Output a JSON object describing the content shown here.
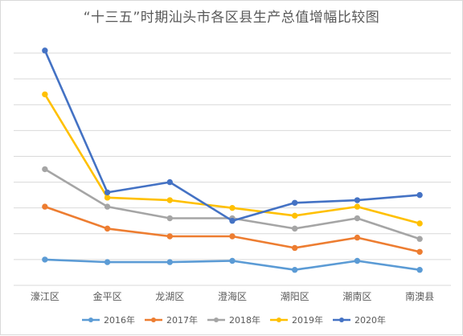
{
  "chart_data": {
    "type": "line",
    "title": "“十三五”时期汕头市各区县生产总值增幅比较图",
    "categories": [
      "濠江区",
      "金平区",
      "龙湖区",
      "澄海区",
      "潮阳区",
      "潮南区",
      "南澳县"
    ],
    "ylim": [
      0,
      9.5
    ],
    "grid": true,
    "legend_position": "bottom",
    "series": [
      {
        "name": "2016年",
        "color": "#5B9BD5",
        "values": [
          1.0,
          0.9,
          0.9,
          0.95,
          0.6,
          0.95,
          0.6
        ]
      },
      {
        "name": "2017年",
        "color": "#ED7D31",
        "values": [
          3.05,
          2.2,
          1.9,
          1.9,
          1.45,
          1.85,
          1.3
        ]
      },
      {
        "name": "2018年",
        "color": "#A5A5A5",
        "values": [
          4.5,
          3.05,
          2.6,
          2.6,
          2.2,
          2.6,
          1.8
        ]
      },
      {
        "name": "2019年",
        "color": "#FFC000",
        "values": [
          7.4,
          3.4,
          3.3,
          3.0,
          2.7,
          3.05,
          2.4
        ]
      },
      {
        "name": "2020年",
        "color": "#4472C4",
        "values": [
          9.1,
          3.6,
          4.0,
          2.5,
          3.2,
          3.3,
          3.5
        ]
      }
    ]
  }
}
